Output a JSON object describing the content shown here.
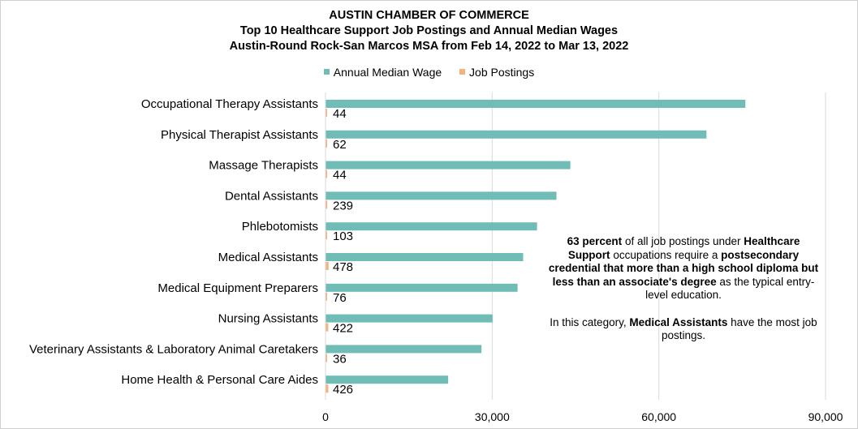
{
  "title": {
    "line1": "AUSTIN CHAMBER OF COMMERCE",
    "line2": "Top 10 Healthcare Support Job Postings and Annual Median Wages",
    "line3": "Austin-Round Rock-San Marcos MSA from Feb 14, 2022 to Mar 13, 2022"
  },
  "legend": {
    "wage_label": "Annual Median Wage",
    "postings_label": "Job Postings"
  },
  "colors": {
    "wage": "#70bdb8",
    "postings": "#f3b37e",
    "grid": "#d9d9d9"
  },
  "annotation": {
    "p1_bold1": "63 percent",
    "p1_text1": " of all job postings under ",
    "p1_bold2": "Healthcare Support",
    "p1_text2": " occupations require a ",
    "p1_bold3": "postsecondary credential that more than a high school diploma but less than an associate's degree",
    "p1_text3": " as the typical entry-level education.",
    "p2_text1": "In this category, ",
    "p2_bold1": "Medical Assistants",
    "p2_text2": " have the most job postings."
  },
  "chart_data": {
    "type": "bar",
    "orientation": "horizontal",
    "categories": [
      "Occupational Therapy Assistants",
      "Physical Therapist Assistants",
      "Massage Therapists",
      "Dental Assistants",
      "Phlebotomists",
      "Medical Assistants",
      "Medical Equipment Preparers",
      "Nursing Assistants",
      "Veterinary Assistants & Laboratory Animal Caretakers",
      "Home Health & Personal Care Aides"
    ],
    "series": [
      {
        "name": "Annual Median Wage",
        "values": [
          75500,
          68500,
          44000,
          41500,
          38000,
          35500,
          34500,
          30000,
          28000,
          22000
        ]
      },
      {
        "name": "Job Postings",
        "values": [
          44,
          62,
          44,
          239,
          103,
          478,
          76,
          422,
          36,
          426
        ],
        "data_labels": [
          "44",
          "62",
          "44",
          "239",
          "103",
          "478",
          "76",
          "422",
          "36",
          "426"
        ]
      }
    ],
    "xlim": [
      0,
      90000
    ],
    "xticks": [
      0,
      30000,
      60000,
      90000
    ],
    "xtick_labels": [
      "0",
      "30,000",
      "60,000",
      "90,000"
    ],
    "grid": "vertical",
    "legend_position": "top"
  }
}
